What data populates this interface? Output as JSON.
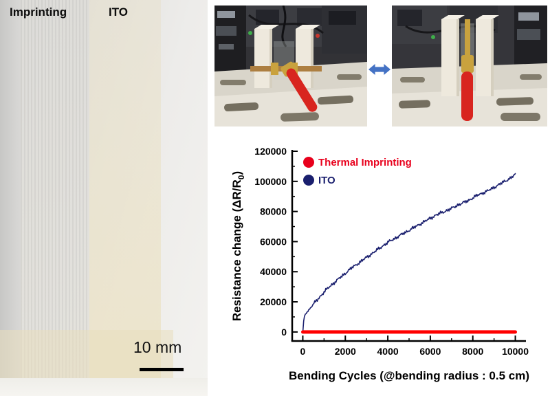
{
  "figure": {
    "left_photo": {
      "label_imprinting": "Imprinting",
      "label_ito": "ITO",
      "scale_text": "10 mm"
    },
    "apparatus": {
      "arrow_color": "#4472c4"
    }
  },
  "chart_data": {
    "type": "line",
    "title": "",
    "xlabel": "Bending Cycles (@bending radius : 0.5 cm)",
    "ylabel_pre": "Resistance change (ΔR/R",
    "ylabel_sub": "0",
    "ylabel_post": ")",
    "xlim": [
      -500,
      10500
    ],
    "ylim": [
      -6000,
      120000
    ],
    "xticks": [
      0,
      2000,
      4000,
      6000,
      8000,
      10000
    ],
    "yticks": [
      0,
      20000,
      40000,
      60000,
      80000,
      100000,
      120000
    ],
    "x_minor_step": 1000,
    "y_minor_step": 10000,
    "grid": false,
    "legend_position": "top-left",
    "legend": [
      {
        "label": "Thermal Imprinting",
        "color": "#e8001c"
      },
      {
        "label": "ITO",
        "color": "#1a1f6e"
      }
    ],
    "series": [
      {
        "name": "ITO",
        "color": "#1a1f6e",
        "width": 1.6,
        "noise": 1400,
        "x": [
          0,
          50,
          100,
          250,
          500,
          750,
          1000,
          1250,
          1500,
          1750,
          2000,
          2250,
          2500,
          2750,
          3000,
          3250,
          3500,
          3750,
          4000,
          4250,
          4500,
          4750,
          5000,
          5250,
          5500,
          5750,
          6000,
          6250,
          6500,
          6750,
          7000,
          7250,
          7500,
          7750,
          8000,
          8250,
          8500,
          8750,
          9000,
          9250,
          9500,
          9750,
          10000
        ],
        "y": [
          0,
          9000,
          11500,
          14000,
          18500,
          22500,
          26500,
          30000,
          33000,
          36000,
          39000,
          42000,
          44500,
          47000,
          49500,
          52000,
          54500,
          57000,
          59500,
          61500,
          63500,
          65500,
          67500,
          69500,
          71500,
          73500,
          75500,
          77500,
          79000,
          80500,
          82000,
          84000,
          85500,
          87000,
          89000,
          91000,
          92500,
          94000,
          96000,
          98000,
          100000,
          102000,
          104500
        ]
      },
      {
        "name": "Thermal Imprinting",
        "color": "#ff0000",
        "width": 5,
        "noise": 0,
        "x": [
          0,
          10000
        ],
        "y": [
          0,
          0
        ]
      }
    ]
  }
}
